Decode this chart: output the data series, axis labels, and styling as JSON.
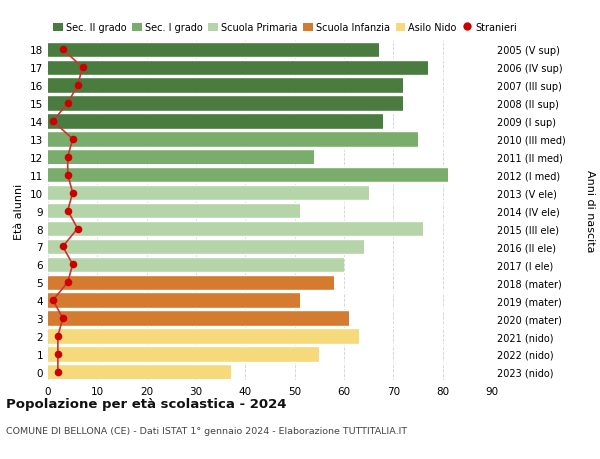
{
  "ages": [
    0,
    1,
    2,
    3,
    4,
    5,
    6,
    7,
    8,
    9,
    10,
    11,
    12,
    13,
    14,
    15,
    16,
    17,
    18
  ],
  "bar_values": [
    37,
    55,
    63,
    61,
    51,
    58,
    60,
    64,
    76,
    51,
    65,
    81,
    54,
    75,
    68,
    72,
    72,
    77,
    67
  ],
  "stranieri": [
    2,
    2,
    2,
    3,
    1,
    4,
    5,
    3,
    6,
    4,
    5,
    4,
    4,
    5,
    1,
    4,
    6,
    7,
    3
  ],
  "right_labels": [
    "2023 (nido)",
    "2022 (nido)",
    "2021 (nido)",
    "2020 (mater)",
    "2019 (mater)",
    "2018 (mater)",
    "2017 (I ele)",
    "2016 (II ele)",
    "2015 (III ele)",
    "2014 (IV ele)",
    "2013 (V ele)",
    "2012 (I med)",
    "2011 (II med)",
    "2010 (III med)",
    "2009 (I sup)",
    "2008 (II sup)",
    "2007 (III sup)",
    "2006 (IV sup)",
    "2005 (V sup)"
  ],
  "bar_colors": {
    "sec2": "#4a7c3f",
    "sec1": "#7aad6b",
    "primaria": "#b5d4a8",
    "infanzia": "#d47b30",
    "nido": "#f5d97a"
  },
  "age_school": {
    "sec2": [
      14,
      15,
      16,
      17,
      18
    ],
    "sec1": [
      11,
      12,
      13
    ],
    "primaria": [
      6,
      7,
      8,
      9,
      10
    ],
    "infanzia": [
      3,
      4,
      5
    ],
    "nido": [
      0,
      1,
      2
    ]
  },
  "legend_labels": [
    "Sec. II grado",
    "Sec. I grado",
    "Scuola Primaria",
    "Scuola Infanzia",
    "Asilo Nido",
    "Stranieri"
  ],
  "legend_colors": [
    "#4a7c3f",
    "#7aad6b",
    "#b5d4a8",
    "#d47b30",
    "#f5d97a",
    "#cc0000"
  ],
  "ylabel_left": "Età alunni",
  "ylabel_right": "Anni di nascita",
  "title": "Popolazione per età scolastica - 2024",
  "subtitle": "COMUNE DI BELLONA (CE) - Dati ISTAT 1° gennaio 2024 - Elaborazione TUTTITALIA.IT",
  "xlim": [
    0,
    90
  ],
  "background_color": "#ffffff",
  "grid_color": "#cccccc",
  "stranieri_color": "#cc0000",
  "stranieri_line_color": "#cc3333"
}
